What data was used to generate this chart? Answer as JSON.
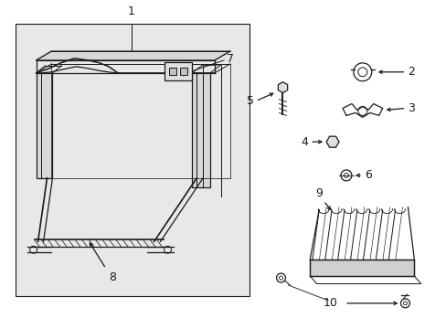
{
  "bg_color": "#ffffff",
  "box_fill": "#e8e8e8",
  "line_color": "#1a1a1a",
  "fig_width": 4.89,
  "fig_height": 3.6,
  "dpi": 100
}
